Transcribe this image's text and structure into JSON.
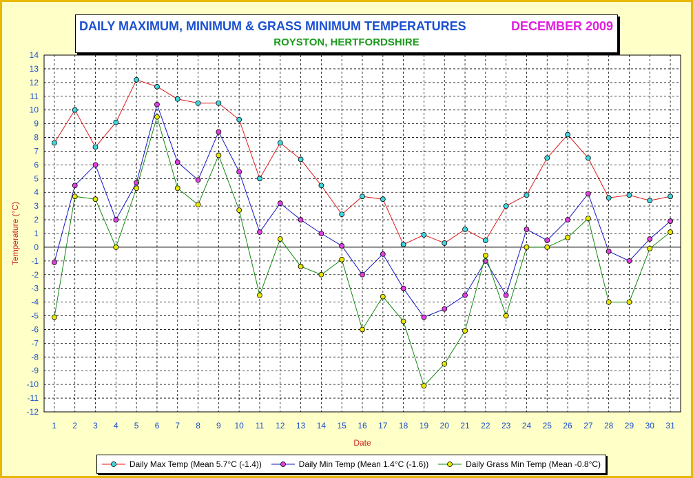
{
  "title": {
    "main": "DAILY MAXIMUM, MINIMUM & GRASS MINIMUM TEMPERATURES",
    "period": "DECEMBER 2009",
    "subtitle": "ROYSTON, HERTFORDSHIRE"
  },
  "colors": {
    "max_line": "#e01818",
    "max_marker": "#40d8e0",
    "min_line": "#1414c8",
    "min_marker": "#e040e0",
    "grass_line": "#12880f",
    "grass_marker": "#e8e800",
    "axis_title": "#cc2020",
    "tick_label": "#1a4fd0",
    "frame": "#e8b800",
    "background": "#ffffc8"
  },
  "chart_data": {
    "type": "line",
    "xlabel": "Date",
    "ylabel": "Temperature (°C)",
    "x": [
      1,
      2,
      3,
      4,
      5,
      6,
      7,
      8,
      9,
      10,
      11,
      12,
      13,
      14,
      15,
      16,
      17,
      18,
      19,
      20,
      21,
      22,
      23,
      24,
      25,
      26,
      27,
      28,
      29,
      30,
      31
    ],
    "ylim": [
      -12,
      14
    ],
    "ytick_step": 1,
    "grid": true,
    "legend_position": "bottom",
    "series": [
      {
        "name": "Daily Max Temp (Mean 5.7°C (-1.4))",
        "key": "max",
        "values": [
          7.6,
          10.0,
          7.3,
          9.1,
          12.2,
          11.7,
          10.8,
          10.5,
          10.5,
          9.3,
          5.0,
          7.6,
          6.4,
          4.5,
          2.4,
          3.7,
          3.5,
          0.2,
          0.9,
          0.3,
          1.3,
          0.5,
          3.0,
          3.8,
          6.5,
          8.2,
          6.5,
          3.6,
          3.8,
          3.4,
          3.7
        ]
      },
      {
        "name": "Daily Min Temp (Mean 1.4°C (-1.6))",
        "key": "min",
        "values": [
          -1.1,
          4.5,
          6.0,
          2.0,
          4.7,
          10.4,
          6.2,
          4.9,
          8.4,
          5.5,
          1.1,
          3.2,
          2.0,
          1.0,
          0.1,
          -2.0,
          -0.5,
          -3.0,
          -5.1,
          -4.5,
          -3.5,
          -1.0,
          -3.5,
          1.3,
          0.5,
          2.0,
          3.9,
          -0.3,
          -1.0,
          0.6,
          1.9
        ]
      },
      {
        "name": "Daily Grass Min Temp (Mean -0.8°C)",
        "key": "grass",
        "values": [
          -5.1,
          3.7,
          3.5,
          0.0,
          4.3,
          9.5,
          4.3,
          3.1,
          6.7,
          2.7,
          -3.5,
          0.6,
          -1.4,
          -2.0,
          -0.9,
          -6.0,
          -3.6,
          -5.4,
          -10.1,
          -8.5,
          -6.1,
          -0.6,
          -5.0,
          0.0,
          0.0,
          0.7,
          2.1,
          -4.0,
          -4.0,
          -0.1,
          1.1
        ]
      }
    ]
  }
}
